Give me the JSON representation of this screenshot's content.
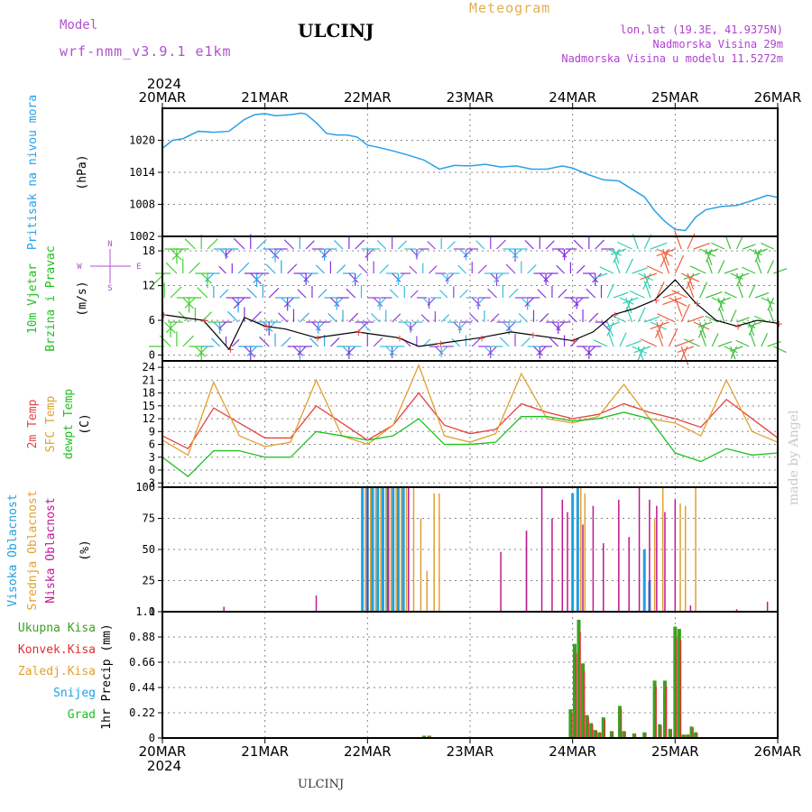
{
  "header": {
    "title": "ULCINJ",
    "meteogram": "Meteogram",
    "model_label": "Model",
    "model_name": "wrf-nmm_v3.9.1 e1km",
    "coords": "lon,lat (19.3E, 41.9375N)",
    "elevation": "Nadmorska Visina 29m",
    "elevation_model": "Nadmorska Visina u modelu 11.5272m",
    "year_top": "2024",
    "year_bottom": "2024",
    "footer": "ULCINJ",
    "credit": "made by Angel"
  },
  "colors": {
    "pressure": "#2aa0e8",
    "t2m": "#e84040",
    "tsfc": "#e0a030",
    "dewpt": "#20c020",
    "high_cloud": "#20a0e0",
    "mid_cloud": "#e0a030",
    "low_cloud": "#c01890",
    "total_precip": "#3ca020",
    "conv_precip": "#e03030",
    "grid": "#888888"
  },
  "chart_data": [
    {
      "type": "line",
      "panel": "pressure",
      "ylabel": [
        "Pritisak na nivou mora",
        "(hPa)"
      ],
      "ylim": [
        1002,
        1026
      ],
      "yticks": [
        1002,
        1008,
        1014,
        1020
      ],
      "x": [
        0,
        0.1,
        0.2,
        0.35,
        0.5,
        0.65,
        0.8,
        0.9,
        1.0,
        1.1,
        1.25,
        1.35,
        1.4,
        1.5,
        1.6,
        1.7,
        1.8,
        1.9,
        2.0,
        2.1,
        2.25,
        2.4,
        2.55,
        2.7,
        2.85,
        3.0,
        3.15,
        3.3,
        3.45,
        3.6,
        3.75,
        3.9,
        4.0,
        4.15,
        4.3,
        4.45,
        4.55,
        4.7,
        4.8,
        4.9,
        5.0,
        5.1,
        5.2,
        5.3,
        5.45,
        5.6,
        5.75,
        5.9,
        6.0
      ],
      "values": [
        1018.5,
        1020.0,
        1020.3,
        1021.7,
        1021.5,
        1021.7,
        1023.9,
        1024.8,
        1025.0,
        1024.6,
        1024.8,
        1025.1,
        1024.9,
        1023.3,
        1021.3,
        1021.0,
        1021.0,
        1020.6,
        1019.1,
        1018.7,
        1018.0,
        1017.2,
        1016.3,
        1014.6,
        1015.3,
        1015.2,
        1015.5,
        1015.0,
        1015.2,
        1014.6,
        1014.6,
        1015.2,
        1014.8,
        1013.6,
        1012.6,
        1012.4,
        1011.2,
        1009.4,
        1006.8,
        1004.8,
        1003.3,
        1003.1,
        1005.6,
        1007.0,
        1007.6,
        1007.8,
        1008.7,
        1009.7,
        1009.3
      ]
    },
    {
      "type": "line",
      "panel": "wind",
      "ylabel": [
        "10m Vjetar",
        "Brzina i Pravac",
        "(m/s)"
      ],
      "compass": [
        "N",
        "W",
        "E",
        "S"
      ],
      "ylim": [
        -1,
        20.5
      ],
      "yticks": [
        0,
        6,
        12,
        18
      ],
      "x": [
        0,
        0.2,
        0.4,
        0.55,
        0.65,
        0.8,
        1.0,
        1.2,
        1.5,
        1.7,
        1.9,
        2.1,
        2.3,
        2.5,
        2.7,
        2.9,
        3.1,
        3.4,
        3.6,
        3.8,
        4.0,
        4.2,
        4.4,
        4.6,
        4.8,
        5.0,
        5.2,
        5.4,
        5.6,
        5.8,
        6.0
      ],
      "values": [
        7.0,
        6.5,
        6.0,
        3.0,
        1.0,
        6.5,
        5.0,
        4.5,
        3.0,
        3.5,
        4.0,
        3.5,
        3.0,
        1.5,
        2.0,
        2.5,
        3.0,
        4.0,
        3.5,
        3.0,
        2.5,
        4.0,
        7.0,
        8.0,
        9.5,
        13.0,
        9.0,
        6.0,
        5.0,
        6.0,
        5.5
      ]
    },
    {
      "type": "line",
      "panel": "temperature",
      "ylabel": [
        "2m Temp",
        "SFC Temp",
        "dewpt Temp",
        "(C)"
      ],
      "ylim": [
        -4,
        25.5
      ],
      "yticks": [
        -3,
        0,
        3,
        6,
        9,
        12,
        15,
        18,
        21,
        24
      ],
      "x": [
        0,
        0.25,
        0.5,
        0.75,
        1.0,
        1.25,
        1.5,
        1.75,
        2.0,
        2.25,
        2.5,
        2.75,
        3.0,
        3.25,
        3.5,
        3.75,
        4.0,
        4.25,
        4.5,
        4.75,
        5.0,
        5.25,
        5.5,
        5.75,
        6.0
      ],
      "series": [
        {
          "name": "2m Temp",
          "color_key": "t2m",
          "values": [
            8.0,
            5.0,
            14.5,
            11.0,
            7.5,
            7.5,
            15.0,
            11.0,
            7.0,
            10.5,
            18.0,
            10.5,
            8.5,
            9.5,
            15.5,
            13.5,
            12.0,
            13.0,
            15.5,
            13.5,
            12.0,
            10.0,
            16.5,
            12.0,
            7.5
          ]
        },
        {
          "name": "SFC Temp",
          "color_key": "tsfc",
          "values": [
            7.0,
            3.5,
            20.5,
            8.0,
            5.5,
            6.5,
            21.0,
            8.0,
            6.0,
            10.5,
            24.5,
            8.0,
            6.5,
            8.5,
            22.5,
            12.0,
            11.0,
            12.5,
            20.0,
            12.0,
            11.0,
            8.0,
            21.0,
            9.0,
            6.5
          ]
        },
        {
          "name": "dewpt Temp",
          "color_key": "dewpt",
          "values": [
            3.0,
            -1.5,
            4.5,
            4.5,
            3.0,
            3.0,
            9.0,
            8.0,
            7.0,
            8.0,
            12.0,
            6.0,
            6.0,
            6.5,
            12.5,
            12.5,
            11.5,
            12.0,
            13.5,
            12.0,
            4.0,
            2.0,
            5.0,
            3.5,
            4.0
          ]
        }
      ]
    },
    {
      "type": "bar",
      "panel": "cloud",
      "ylabel": [
        "Visoka Oblacnost",
        "Srednja Oblacnost",
        "Niska Oblacnost",
        "(%)"
      ],
      "ylim": [
        0,
        100
      ],
      "yticks": [
        0,
        25,
        50,
        75,
        100
      ],
      "series": [
        {
          "name": "Visoka Oblacnost",
          "color_key": "high_cloud",
          "x": [
            1.95,
            2.0,
            2.05,
            2.1,
            2.15,
            2.2,
            2.25,
            2.3,
            2.35,
            4.0,
            4.05,
            4.7,
            4.75
          ],
          "values": [
            100,
            100,
            100,
            100,
            100,
            100,
            100,
            100,
            100,
            95,
            100,
            50,
            25
          ]
        },
        {
          "name": "Srednja Oblacnost",
          "color_key": "mid_cloud",
          "x": [
            1.98,
            2.03,
            2.08,
            2.13,
            2.18,
            2.23,
            2.28,
            2.33,
            2.38,
            2.45,
            2.52,
            2.58,
            2.65,
            2.7,
            3.55,
            4.08,
            4.12,
            4.8,
            4.88,
            5.05,
            5.1,
            5.2
          ],
          "values": [
            100,
            100,
            100,
            100,
            100,
            100,
            100,
            100,
            100,
            100,
            75,
            33,
            95,
            95,
            65,
            100,
            95,
            75,
            100,
            87,
            85,
            100
          ]
        },
        {
          "name": "Niska Oblacnost",
          "color_key": "low_cloud",
          "x": [
            0.6,
            1.5,
            2.0,
            2.2,
            2.4,
            3.3,
            3.55,
            3.7,
            3.8,
            3.9,
            3.95,
            4.1,
            4.2,
            4.3,
            4.45,
            4.55,
            4.65,
            4.75,
            4.82,
            4.9,
            5.0,
            5.15,
            5.6,
            5.9
          ],
          "values": [
            4,
            13,
            100,
            100,
            100,
            48,
            65,
            100,
            75,
            90,
            80,
            70,
            85,
            55,
            90,
            60,
            100,
            90,
            85,
            80,
            90,
            5,
            2,
            8
          ]
        }
      ]
    },
    {
      "type": "bar",
      "panel": "precip",
      "ylabel": [
        "1hr Precip (mm)"
      ],
      "legend": [
        "Ukupna Kisa",
        "Konvek.Kisa",
        "Zaledj.Kisa",
        "Snijeg",
        "Grad"
      ],
      "legend_color_keys": [
        "total_precip",
        "conv_precip",
        "tsfc",
        "high_cloud",
        "dewpt"
      ],
      "ylim": [
        0,
        1.1
      ],
      "yticks": [
        0,
        0.22,
        0.44,
        0.66,
        0.88,
        1.1
      ],
      "x": [
        2.55,
        2.6,
        3.98,
        4.02,
        4.06,
        4.1,
        4.14,
        4.18,
        4.22,
        4.26,
        4.3,
        4.38,
        4.46,
        4.5,
        4.6,
        4.7,
        4.8,
        4.85,
        4.9,
        4.95,
        5.0,
        5.04,
        5.08,
        5.12,
        5.16,
        5.2
      ],
      "values": [
        0.02,
        0.02,
        0.25,
        0.82,
        1.03,
        0.65,
        0.2,
        0.13,
        0.07,
        0.05,
        0.18,
        0.06,
        0.28,
        0.06,
        0.04,
        0.05,
        0.5,
        0.12,
        0.5,
        0.08,
        0.97,
        0.95,
        0.03,
        0.03,
        0.1,
        0.05
      ]
    }
  ],
  "xaxis": {
    "labels": [
      "20MAR",
      "21MAR",
      "22MAR",
      "23MAR",
      "24MAR",
      "25MAR",
      "26MAR"
    ]
  }
}
